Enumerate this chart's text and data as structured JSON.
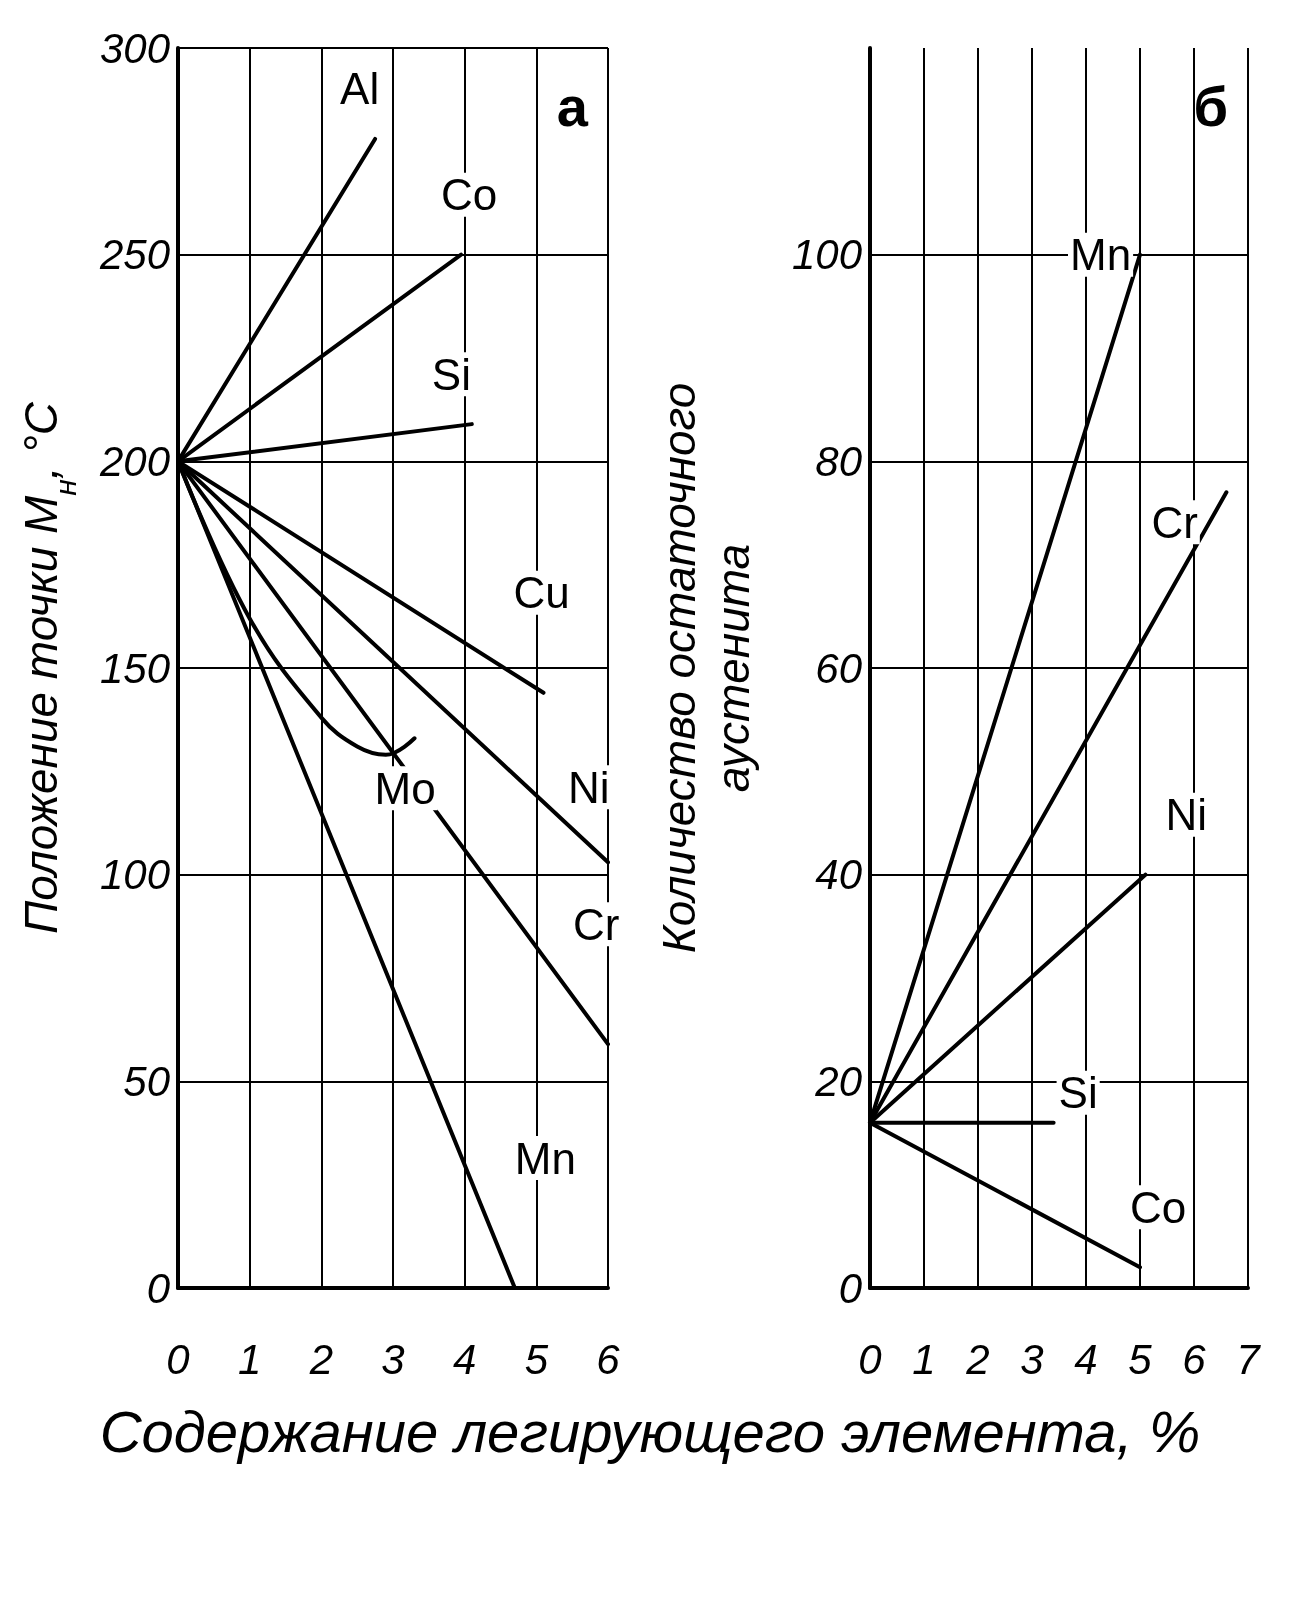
{
  "chart_data": [
    {
      "type": "line",
      "ylabel": "Положение точки M$_{н}$, °C",
      "xlabel": "Содержание легирующего элемента, %",
      "annotations": [
        "а"
      ],
      "xlim": [
        0,
        6
      ],
      "xticks": [
        0,
        1,
        2,
        3,
        4,
        5,
        6
      ],
      "ylim": [
        0,
        300
      ],
      "yticks": [
        0,
        50,
        100,
        150,
        200,
        250,
        300
      ],
      "grid": true,
      "legend": false,
      "marker": "none",
      "line_style": "solid",
      "series": [
        {
          "name": "Al",
          "color": "#000000",
          "x": [
            0,
            2.75
          ],
          "values": [
            200,
            278
          ]
        },
        {
          "name": "Co",
          "color": "#000000",
          "x": [
            0,
            3.95
          ],
          "values": [
            200,
            250
          ]
        },
        {
          "name": "Si",
          "color": "#000000",
          "x": [
            0,
            4.1
          ],
          "values": [
            200,
            209
          ]
        },
        {
          "name": "Cu",
          "color": "#000000",
          "x": [
            0,
            5.1
          ],
          "values": [
            200,
            144
          ]
        },
        {
          "name": "Ni",
          "color": "#000000",
          "x": [
            0,
            6
          ],
          "values": [
            200,
            103
          ]
        },
        {
          "name": "Cr",
          "color": "#000000",
          "x": [
            0,
            6
          ],
          "values": [
            200,
            59
          ]
        },
        {
          "name": "Mn",
          "color": "#000000",
          "x": [
            0,
            4.7
          ],
          "values": [
            200,
            0
          ]
        },
        {
          "name": "Mo",
          "color": "#000000",
          "x": [
            0,
            1,
            2,
            2.5,
            2.9,
            3.3
          ],
          "values": [
            200,
            162,
            138,
            131,
            129,
            133
          ]
        }
      ]
    },
    {
      "type": "line",
      "ylabel": "Количество остаточного\nаустенита",
      "annotations": [
        "б"
      ],
      "xlim": [
        0,
        7
      ],
      "xticks": [
        0,
        1,
        2,
        3,
        4,
        5,
        6,
        7
      ],
      "ylim": [
        0,
        120
      ],
      "yticks": [
        0,
        20,
        40,
        60,
        80,
        100
      ],
      "grid": true,
      "legend": false,
      "marker": "none",
      "line_style": "solid",
      "series": [
        {
          "name": "Mn",
          "color": "#000000",
          "x": [
            0,
            5
          ],
          "values": [
            16,
            100
          ]
        },
        {
          "name": "Cr",
          "color": "#000000",
          "x": [
            0,
            6.6
          ],
          "values": [
            16,
            77
          ]
        },
        {
          "name": "Ni",
          "color": "#000000",
          "x": [
            0,
            5.1
          ],
          "values": [
            16,
            40
          ]
        },
        {
          "name": "Si",
          "color": "#000000",
          "x": [
            0,
            3.4
          ],
          "values": [
            16,
            16
          ]
        },
        {
          "name": "Co",
          "color": "#000000",
          "x": [
            0,
            5
          ],
          "values": [
            16,
            2
          ]
        }
      ]
    }
  ]
}
